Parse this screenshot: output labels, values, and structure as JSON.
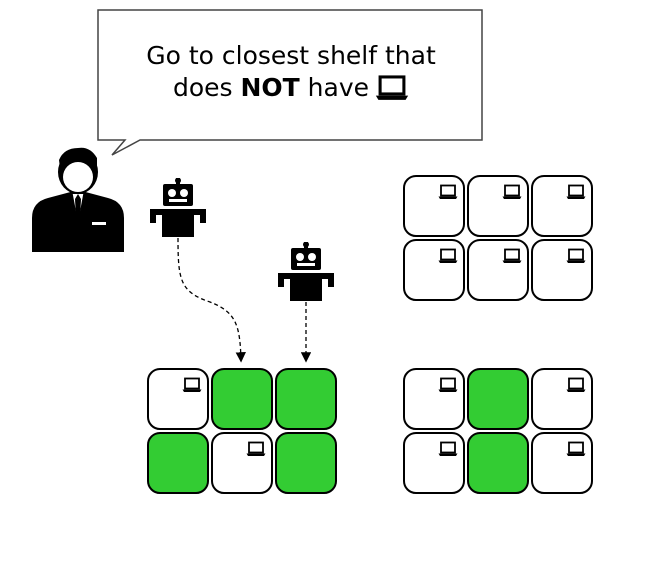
{
  "instruction": {
    "line1": "Go to closest shelf that",
    "line2_prefix": "does ",
    "line2_emphasis": "NOT",
    "line2_suffix": " have",
    "item_icon": "laptop-icon"
  },
  "icons": {
    "person": "businessman-icon",
    "robot": "robot-icon",
    "item": "laptop-icon"
  },
  "colors": {
    "empty_slot": "#33cc33",
    "filled_slot": "#ffffff",
    "outline": "#000000"
  },
  "shelves": [
    {
      "name": "shelf-top-right",
      "slots": [
        [
          true,
          true,
          true
        ],
        [
          true,
          true,
          true
        ]
      ]
    },
    {
      "name": "shelf-bottom-left",
      "slots": [
        [
          true,
          false,
          false
        ],
        [
          false,
          true,
          false
        ]
      ]
    },
    {
      "name": "shelf-bottom-right",
      "slots": [
        [
          true,
          false,
          true
        ],
        [
          true,
          false,
          true
        ]
      ]
    }
  ],
  "robots": [
    {
      "name": "robot-1",
      "target_shelf": "shelf-bottom-left",
      "target_slot": [
        0,
        1
      ]
    },
    {
      "name": "robot-2",
      "target_shelf": "shelf-bottom-left",
      "target_slot": [
        0,
        2
      ]
    }
  ]
}
